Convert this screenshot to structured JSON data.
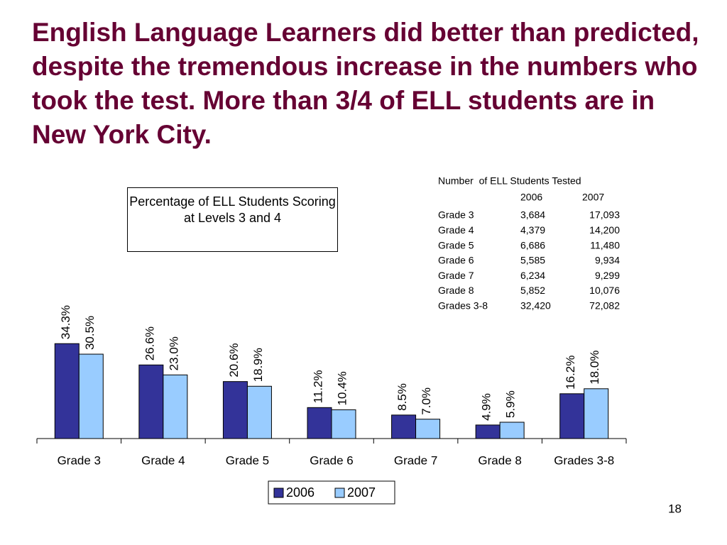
{
  "slide_title": "English Language Learners did better than predicted, despite the tremendous increase in the numbers who took the test. More than 3/4 of ELL students are in New York City.",
  "chart_data": {
    "type": "bar",
    "title": "Percentage of ELL Students Scoring at Levels 3 and 4",
    "categories": [
      "Grade 3",
      "Grade 4",
      "Grade 5",
      "Grade 6",
      "Grade 7",
      "Grade 8",
      "Grades 3-8"
    ],
    "series": [
      {
        "name": "2006",
        "color": "#333399",
        "values": [
          34.3,
          26.6,
          20.6,
          11.2,
          8.5,
          4.9,
          16.2
        ],
        "value_labels": [
          "34.3%",
          "26.6%",
          "20.6%",
          "11.2%",
          "8.5%",
          "4.9%",
          "16.2%"
        ]
      },
      {
        "name": "2007",
        "color": "#99ccff",
        "values": [
          30.5,
          23.0,
          18.9,
          10.4,
          7.0,
          5.9,
          18.0
        ],
        "value_labels": [
          "30.5%",
          "23.0%",
          "18.9%",
          "10.4%",
          "7.0%",
          "5.9%",
          "18.0%"
        ]
      }
    ],
    "legend": "bottom"
  },
  "table": {
    "title": "Number  of ELL Students Tested",
    "columns": [
      "2006",
      "2007"
    ],
    "rows": [
      [
        "Grade 3",
        "3,684",
        "17,093"
      ],
      [
        "Grade 4",
        "4,379",
        "14,200"
      ],
      [
        "Grade 5",
        "6,686",
        "11,480"
      ],
      [
        "Grade 6",
        "5,585",
        "9,934"
      ],
      [
        "Grade 7",
        "6,234",
        "9,299"
      ],
      [
        "Grade 8",
        "5,852",
        "10,076"
      ],
      [
        "Grades 3-8",
        "32,420",
        "72,082"
      ]
    ]
  },
  "page_number": "18"
}
